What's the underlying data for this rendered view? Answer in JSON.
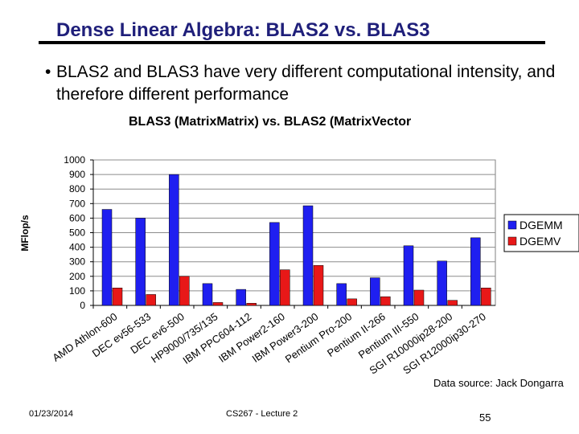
{
  "slide": {
    "title": "Dense Linear Algebra: BLAS2 vs. BLAS3",
    "bullet": "BLAS2 and BLAS3 have very different computational intensity, and therefore different performance"
  },
  "footer": {
    "date": "01/23/2014",
    "course": "CS267 - Lecture 2",
    "page": "55"
  },
  "source_note": "Data source: Jack Dongarra",
  "chart_data": {
    "type": "bar",
    "title": "BLAS3 (MatrixMatrix) vs. BLAS2 (MatrixVector",
    "ylabel": "MFlop/s",
    "xlabel": "",
    "ylim": [
      0,
      1000
    ],
    "yticks": [
      0,
      100,
      200,
      300,
      400,
      500,
      600,
      700,
      800,
      900,
      1000
    ],
    "grid": true,
    "legend_position": "right",
    "categories": [
      "AMD Athlon-600",
      "DEC ev56-533",
      "DEC ev6-500",
      "HP9000/735/135",
      "IBM PPC604-112",
      "IBM Power2-160",
      "IBM Power3-200",
      "Pentium Pro-200",
      "Pentium II-266",
      "Pentium III-550",
      "SGI R10000ip28-200",
      "SGI R12000ip30-270"
    ],
    "series": [
      {
        "name": "DGEMM",
        "color": "#1f1ff0",
        "values": [
          660,
          600,
          900,
          150,
          110,
          570,
          685,
          150,
          190,
          410,
          305,
          465
        ]
      },
      {
        "name": "DGEMV",
        "color": "#e81818",
        "values": [
          120,
          75,
          200,
          20,
          15,
          245,
          275,
          45,
          60,
          105,
          35,
          120
        ]
      }
    ]
  }
}
